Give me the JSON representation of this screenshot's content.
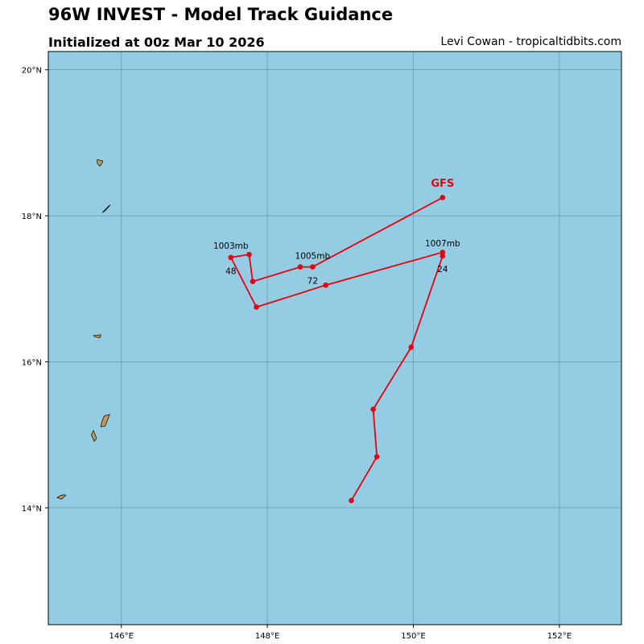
{
  "header": {
    "title": "96W INVEST - Model Track Guidance",
    "subtitle": "Initialized at 00z Mar 10 2026",
    "credit": "Levi Cowan - tropicaltidbits.com"
  },
  "colors": {
    "ocean": "#94cde3",
    "land": "#c49a5c",
    "grid": "#4a6b7a",
    "track": "#e8000e"
  },
  "map": {
    "lon_range": [
      145.0,
      152.85
    ],
    "lat_range": [
      12.4,
      20.25
    ],
    "lon_ticks": [
      146,
      148,
      150,
      152
    ],
    "lat_ticks": [
      14,
      16,
      18,
      20
    ],
    "lon_tick_labels": [
      "146°E",
      "148°E",
      "150°E",
      "152°E"
    ],
    "lat_tick_labels": [
      "14°N",
      "16°N",
      "18°N",
      "20°N"
    ],
    "islands": [
      {
        "name": "Farallon de Pajaros",
        "points": [
          [
            145.67,
            18.77
          ],
          [
            145.75,
            18.75
          ],
          [
            145.71,
            18.68
          ],
          [
            145.67,
            18.72
          ]
        ]
      },
      {
        "name": "Maug",
        "points": [
          [
            145.85,
            18.15
          ],
          [
            145.78,
            18.07
          ],
          [
            145.74,
            18.04
          ],
          [
            145.81,
            18.12
          ]
        ]
      },
      {
        "name": "Anatahan",
        "points": [
          [
            145.62,
            16.36
          ],
          [
            145.72,
            16.37
          ],
          [
            145.71,
            16.33
          ],
          [
            145.64,
            16.34
          ]
        ]
      },
      {
        "name": "Saipan",
        "points": [
          [
            145.77,
            15.26
          ],
          [
            145.84,
            15.28
          ],
          [
            145.78,
            15.12
          ],
          [
            145.72,
            15.11
          ],
          [
            145.74,
            15.2
          ]
        ]
      },
      {
        "name": "Tinian",
        "points": [
          [
            145.62,
            15.06
          ],
          [
            145.66,
            14.95
          ],
          [
            145.63,
            14.91
          ],
          [
            145.59,
            15.0
          ]
        ]
      },
      {
        "name": "Rota",
        "points": [
          [
            145.22,
            14.18
          ],
          [
            145.24,
            14.17
          ],
          [
            145.18,
            14.12
          ],
          [
            145.12,
            14.14
          ],
          [
            145.17,
            14.17
          ]
        ]
      }
    ]
  },
  "chart_data": {
    "type": "scatter",
    "series": [
      {
        "name": "GFS",
        "points": [
          [
            149.15,
            14.1
          ],
          [
            149.5,
            14.7
          ],
          [
            149.45,
            15.35
          ],
          [
            149.97,
            16.2
          ],
          [
            150.4,
            17.45
          ],
          [
            150.4,
            17.5
          ],
          [
            148.8,
            17.05
          ],
          [
            147.85,
            16.75
          ],
          [
            147.5,
            17.43
          ],
          [
            147.75,
            17.47
          ],
          [
            147.8,
            17.1
          ],
          [
            148.45,
            17.3
          ],
          [
            148.62,
            17.3
          ],
          [
            150.4,
            18.25
          ]
        ],
        "label": "GFS",
        "label_lonlat": [
          150.4,
          18.4
        ]
      }
    ],
    "annotations": [
      {
        "text": "1007mb",
        "lon": 150.4,
        "lat": 17.58
      },
      {
        "text": "24",
        "lon": 150.4,
        "lat": 17.23
      },
      {
        "text": "1003mb",
        "lon": 147.5,
        "lat": 17.55
      },
      {
        "text": "48",
        "lon": 147.5,
        "lat": 17.2
      },
      {
        "text": "1005mb",
        "lon": 148.62,
        "lat": 17.41
      },
      {
        "text": "72",
        "lon": 148.62,
        "lat": 17.07
      }
    ]
  }
}
